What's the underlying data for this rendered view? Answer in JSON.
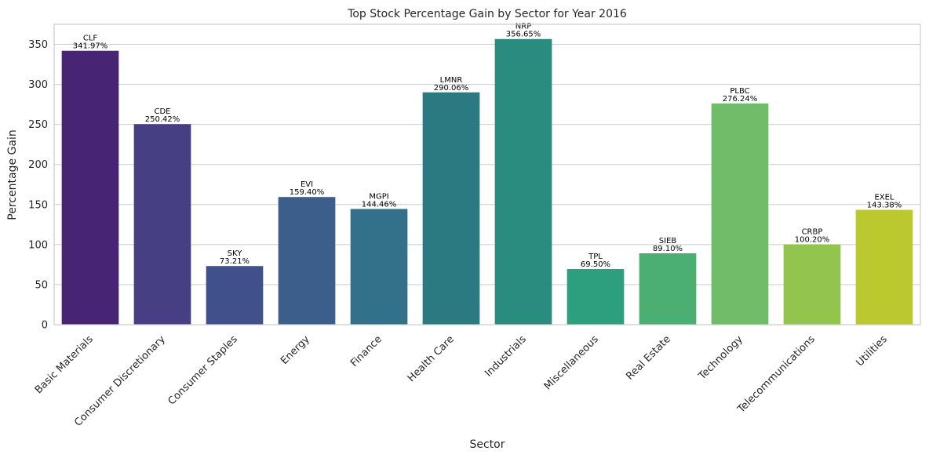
{
  "chart_data": {
    "type": "bar",
    "title": "Top Stock Percentage Gain by Sector for Year 2016",
    "xlabel": "Sector",
    "ylabel": "Percentage Gain",
    "ylim": [
      0,
      375
    ],
    "yticks": [
      0,
      50,
      100,
      150,
      200,
      250,
      300,
      350
    ],
    "grid": "horizontal",
    "categories": [
      "Basic Materials",
      "Consumer Discretionary",
      "Consumer Staples",
      "Energy",
      "Finance",
      "Health Care",
      "Industrials",
      "Miscellaneous",
      "Real Estate",
      "Technology",
      "Telecommunications",
      "Utilities"
    ],
    "values": [
      341.97,
      250.42,
      73.21,
      159.4,
      144.46,
      290.06,
      356.65,
      69.5,
      89.1,
      276.24,
      100.2,
      143.38
    ],
    "tickers": [
      "CLF",
      "CDE",
      "SKY",
      "EVI",
      "MGPI",
      "LMNR",
      "NRP",
      "TPL",
      "SIEB",
      "PLBC",
      "CRBP",
      "EXEL"
    ],
    "value_labels": [
      "341.97%",
      "250.42%",
      "73.21%",
      "159.40%",
      "144.46%",
      "290.06%",
      "356.65%",
      "69.50%",
      "89.10%",
      "276.24%",
      "100.20%",
      "143.38%"
    ],
    "colors": [
      "#482475",
      "#463f83",
      "#40508b",
      "#3b5f8a",
      "#33718b",
      "#2b7a81",
      "#2a8b7f",
      "#2d9f7f",
      "#4caf72",
      "#6fbd68",
      "#93c54e",
      "#bbc92f"
    ]
  }
}
